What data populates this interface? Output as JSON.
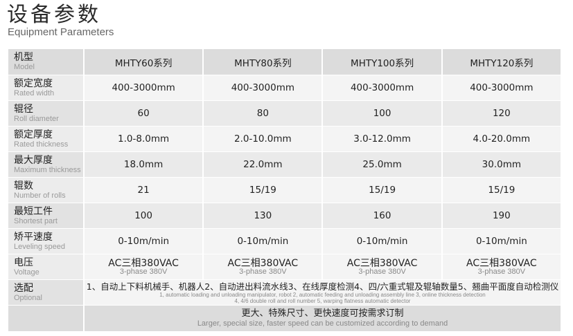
{
  "title": "设备参数",
  "subtitle": "Equipment Parameters",
  "header": {
    "cn": "机型",
    "en": "Model",
    "models": [
      "MHTY60系列",
      "MHTY80系列",
      "MHTY100系列",
      "MHTY120系列"
    ]
  },
  "rows": [
    {
      "cn": "额定宽度",
      "en": "Rated width",
      "values": [
        "400-3000mm",
        "400-3000mm",
        "400-3000mm",
        "400-3000mm"
      ]
    },
    {
      "cn": "辊径",
      "en": "Roll diameter",
      "values": [
        "60",
        "80",
        "100",
        "120"
      ]
    },
    {
      "cn": "额定厚度",
      "en": "Rated thickness",
      "values": [
        "1.0-8.0mm",
        "2.0-10.0mm",
        "3.0-12.0mm",
        "4.0-20.0mm"
      ]
    },
    {
      "cn": "最大厚度",
      "en": "Maximum thickness",
      "values": [
        "18.0mm",
        "22.0mm",
        "25.0mm",
        "30.0mm"
      ]
    },
    {
      "cn": "辊数",
      "en": "Number of rolls",
      "values": [
        "21",
        "15/19",
        "15/19",
        "15/19"
      ]
    },
    {
      "cn": "最短工件",
      "en": "Shortest part",
      "values": [
        "100",
        "130",
        "160",
        "190"
      ]
    },
    {
      "cn": "矫平速度",
      "en": "Leveling speed",
      "values": [
        "0-10m/min",
        "0-10m/min",
        "0-10m/min",
        "0-10m/min"
      ]
    }
  ],
  "voltage": {
    "cn": "电压",
    "en": "Voltage",
    "value": "AC三相380VAC",
    "value_en": "3-phase 380V"
  },
  "optional": {
    "cn": "选配",
    "en": "Optional",
    "text_cn": "1、自动上下料机械手、机器人2、自动进出料流水线3、在线厚度检测4、四/六重式辊及辊轴数量5、翘曲平面度自动检测仪",
    "text_en_1": "1, automatic loading and unloading manipulator, robot 2, automatic feeding and unloading assembly line 3, online thickness detection",
    "text_en_2": "4, 4/6 double roll and roll number 5, warping flatness automatic detector"
  },
  "footer": {
    "cn": "更大、特殊尺寸、更快速度可按需求订制",
    "en": "Larger, special size, faster speed can be customized according to demand"
  }
}
